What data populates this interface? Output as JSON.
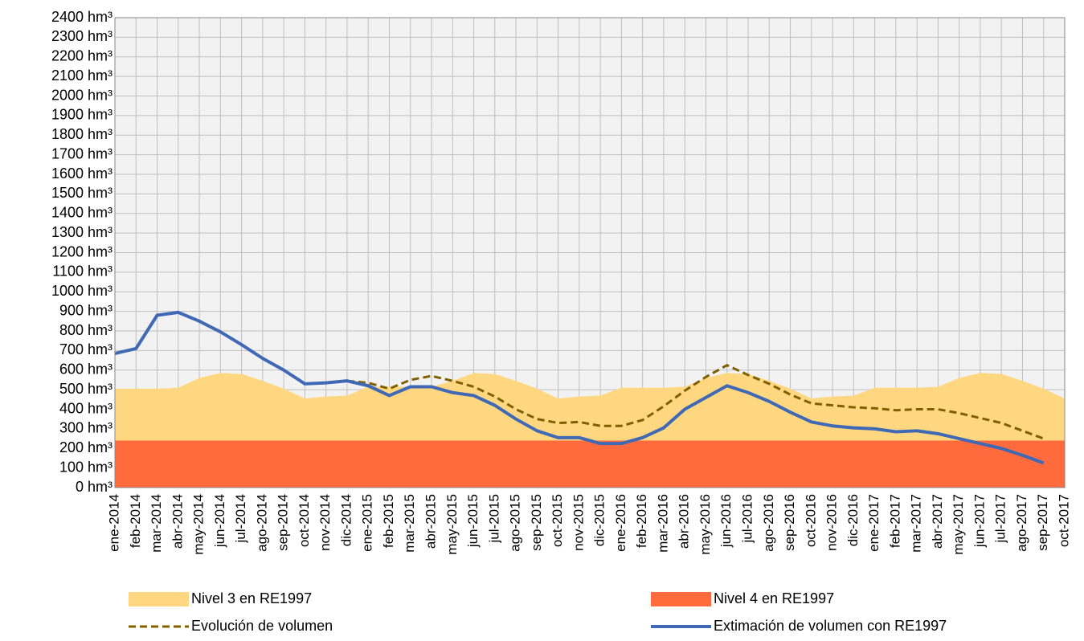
{
  "chart_data": {
    "type": "line",
    "categories": [
      "ene-2014",
      "feb-2014",
      "mar-2014",
      "abr-2014",
      "may-2014",
      "jun-2014",
      "jul-2014",
      "ago-2014",
      "sep-2014",
      "oct-2014",
      "nov-2014",
      "dic-2014",
      "ene-2015",
      "feb-2015",
      "mar-2015",
      "abr-2015",
      "may-2015",
      "jun-2015",
      "jul-2015",
      "ago-2015",
      "sep-2015",
      "oct-2015",
      "nov-2015",
      "dic-2015",
      "ene-2016",
      "feb-2016",
      "mar-2016",
      "abr-2016",
      "may-2016",
      "jun-2016",
      "jul-2016",
      "ago-2016",
      "sep-2016",
      "oct-2016",
      "nov-2016",
      "dic-2016",
      "ene-2017",
      "feb-2017",
      "mar-2017",
      "abr-2017",
      "may-2017",
      "jun-2017",
      "jul-2017",
      "ago-2017",
      "sep-2017",
      "oct-2017"
    ],
    "series": [
      {
        "name": "Nivel 3 en RE1997",
        "color": "#ffd780",
        "style": "area",
        "values": [
          505,
          505,
          505,
          510,
          560,
          585,
          580,
          545,
          505,
          455,
          465,
          470,
          515,
          515,
          515,
          515,
          545,
          585,
          580,
          545,
          505,
          455,
          465,
          470,
          510,
          510,
          510,
          515,
          560,
          585,
          580,
          545,
          505,
          455,
          465,
          470,
          510,
          510,
          510,
          515,
          560,
          585,
          580,
          545,
          505,
          455
        ]
      },
      {
        "name": "Nivel 4 en RE1997",
        "color": "#ff6b3d",
        "style": "area",
        "values": [
          240,
          240,
          240,
          240,
          240,
          240,
          240,
          240,
          240,
          240,
          240,
          240,
          240,
          240,
          240,
          240,
          240,
          240,
          240,
          240,
          240,
          240,
          240,
          240,
          240,
          240,
          240,
          240,
          240,
          240,
          240,
          240,
          240,
          240,
          240,
          240,
          240,
          240,
          240,
          240,
          240,
          240,
          240,
          240,
          240,
          240
        ]
      },
      {
        "name": "Evolución de volumen",
        "color": "#7f6000",
        "style": "dashed",
        "values": [
          null,
          null,
          null,
          null,
          null,
          null,
          null,
          null,
          null,
          null,
          null,
          545,
          535,
          505,
          550,
          570,
          545,
          515,
          465,
          400,
          350,
          330,
          335,
          315,
          315,
          345,
          415,
          495,
          565,
          625,
          575,
          530,
          475,
          430,
          420,
          410,
          405,
          395,
          400,
          400,
          380,
          355,
          330,
          290,
          250,
          null
        ]
      },
      {
        "name": "Extimación de volumen con RE1997",
        "color": "#3f68b5",
        "style": "line",
        "values": [
          685,
          710,
          880,
          895,
          850,
          795,
          730,
          660,
          600,
          530,
          535,
          545,
          520,
          470,
          515,
          515,
          485,
          470,
          420,
          350,
          290,
          255,
          255,
          225,
          225,
          255,
          305,
          400,
          460,
          520,
          485,
          440,
          385,
          335,
          315,
          305,
          300,
          285,
          290,
          275,
          250,
          225,
          200,
          165,
          125,
          null
        ]
      }
    ],
    "ylim": [
      0,
      2400
    ],
    "yticks": [
      {
        "value": 0,
        "label": "0 hm³"
      },
      {
        "value": 100,
        "label": "100 hm³"
      },
      {
        "value": 200,
        "label": "200 hm³"
      },
      {
        "value": 300,
        "label": "300 hm³"
      },
      {
        "value": 400,
        "label": "400 hm³"
      },
      {
        "value": 500,
        "label": "500 hm³"
      },
      {
        "value": 600,
        "label": "600 hm³"
      },
      {
        "value": 700,
        "label": "700 hm³"
      },
      {
        "value": 800,
        "label": "800 hm³"
      },
      {
        "value": 900,
        "label": "900 hm³"
      },
      {
        "value": 1000,
        "label": "1000 hm³"
      },
      {
        "value": 1100,
        "label": "1100 hm³"
      },
      {
        "value": 1200,
        "label": "1200 hm³"
      },
      {
        "value": 1300,
        "label": "1300 hm³"
      },
      {
        "value": 1400,
        "label": "1400 hm³"
      },
      {
        "value": 1500,
        "label": "1500 hm³"
      },
      {
        "value": 1600,
        "label": "1600 hm³"
      },
      {
        "value": 1700,
        "label": "1700 hm³"
      },
      {
        "value": 1800,
        "label": "1800 hm³"
      },
      {
        "value": 1900,
        "label": "1900 hm³"
      },
      {
        "value": 2000,
        "label": "2000 hm³"
      },
      {
        "value": 2100,
        "label": "2100 hm³"
      },
      {
        "value": 2200,
        "label": "2200 hm³"
      },
      {
        "value": 2300,
        "label": "2300 hm³"
      },
      {
        "value": 2400,
        "label": "2400 hm³"
      }
    ],
    "grid": true
  }
}
